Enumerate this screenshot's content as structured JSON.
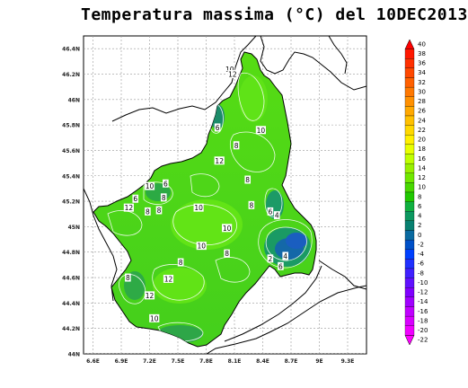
{
  "title": "Temperatura massima (°C) del 10DEC2013",
  "axes": {
    "lat_labels": [
      "46.4N",
      "46.2N",
      "46N",
      "45.8N",
      "45.6N",
      "45.4N",
      "45.2N",
      "45N",
      "44.8N",
      "44.6N",
      "44.4N",
      "44.2N",
      "44N"
    ],
    "lon_labels": [
      "6.6E",
      "6.9E",
      "7.2E",
      "7.5E",
      "7.8E",
      "8.1E",
      "8.4E",
      "8.7E",
      "9E",
      "9.3E"
    ],
    "lat_range": [
      44.0,
      46.5
    ],
    "lon_range": [
      6.5,
      9.5
    ],
    "grid": true
  },
  "colorbar": {
    "labels": [
      "40",
      "38",
      "36",
      "34",
      "32",
      "30",
      "28",
      "26",
      "24",
      "22",
      "20",
      "18",
      "16",
      "14",
      "12",
      "10",
      "8",
      "6",
      "4",
      "2",
      "0",
      "-2",
      "-4",
      "-6",
      "-8",
      "-10",
      "-12",
      "-14",
      "-16",
      "-18",
      "-20",
      "-22"
    ],
    "colors": [
      "#ff0000",
      "#ff1800",
      "#ff3000",
      "#ff4800",
      "#ff6000",
      "#ff7800",
      "#ff9000",
      "#ffa800",
      "#ffc000",
      "#ffd800",
      "#fff000",
      "#e8ff00",
      "#c0ff00",
      "#98f000",
      "#70e800",
      "#48d800",
      "#20c800",
      "#10b040",
      "#0c9860",
      "#088070",
      "#0a6aa0",
      "#0050c8",
      "#0040ff",
      "#2030ff",
      "#4020ff",
      "#6010ff",
      "#8000ff",
      "#a000ff",
      "#c000ff",
      "#d800ff",
      "#f000ff",
      "#ff00ff"
    ]
  },
  "contour_labels": [
    {
      "text": "10",
      "lon": 8.05,
      "lat": 46.24
    },
    {
      "text": "12",
      "lon": 8.08,
      "lat": 46.2
    },
    {
      "text": "6",
      "lon": 7.92,
      "lat": 45.78
    },
    {
      "text": "10",
      "lon": 8.38,
      "lat": 45.76
    },
    {
      "text": "8",
      "lon": 8.12,
      "lat": 45.64
    },
    {
      "text": "12",
      "lon": 7.94,
      "lat": 45.52
    },
    {
      "text": "8",
      "lon": 8.24,
      "lat": 45.37
    },
    {
      "text": "10",
      "lon": 7.2,
      "lat": 45.32
    },
    {
      "text": "6",
      "lon": 7.37,
      "lat": 45.34
    },
    {
      "text": "6",
      "lon": 7.05,
      "lat": 45.22
    },
    {
      "text": "8",
      "lon": 7.35,
      "lat": 45.23
    },
    {
      "text": "12",
      "lon": 6.98,
      "lat": 45.15
    },
    {
      "text": "8",
      "lon": 7.18,
      "lat": 45.12
    },
    {
      "text": "8",
      "lon": 7.3,
      "lat": 45.13
    },
    {
      "text": "10",
      "lon": 7.72,
      "lat": 45.15
    },
    {
      "text": "8",
      "lon": 8.28,
      "lat": 45.17
    },
    {
      "text": "6",
      "lon": 8.48,
      "lat": 45.12
    },
    {
      "text": "4",
      "lon": 8.55,
      "lat": 45.09
    },
    {
      "text": "10",
      "lon": 8.02,
      "lat": 44.99
    },
    {
      "text": "10",
      "lon": 7.75,
      "lat": 44.85
    },
    {
      "text": "8",
      "lon": 8.02,
      "lat": 44.79
    },
    {
      "text": "8",
      "lon": 7.53,
      "lat": 44.72
    },
    {
      "text": "2",
      "lon": 8.48,
      "lat": 44.75
    },
    {
      "text": "4",
      "lon": 8.64,
      "lat": 44.77
    },
    {
      "text": "6",
      "lon": 8.59,
      "lat": 44.69
    },
    {
      "text": "8",
      "lon": 6.97,
      "lat": 44.6
    },
    {
      "text": "12",
      "lon": 7.4,
      "lat": 44.59
    },
    {
      "text": "12",
      "lon": 7.2,
      "lat": 44.46
    },
    {
      "text": "10",
      "lon": 7.25,
      "lat": 44.28
    }
  ]
}
